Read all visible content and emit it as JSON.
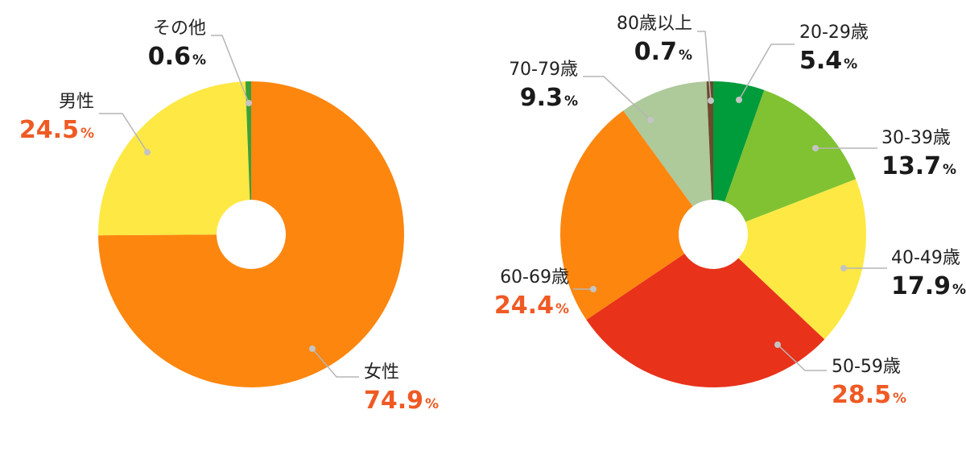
{
  "colors": {
    "accent_value": "#ef5a24",
    "normal_value": "#1a1a1a"
  },
  "chart_data": [
    {
      "type": "pie",
      "donut": true,
      "slices": [
        {
          "label": "女性",
          "value": 74.9,
          "display": "74.9",
          "unit": "%",
          "color": "#fd860f",
          "highlight": true
        },
        {
          "label": "男性",
          "value": 24.5,
          "display": "24.5",
          "unit": "%",
          "color": "#fee844",
          "highlight": true
        },
        {
          "label": "その他",
          "value": 0.6,
          "display": "0.6",
          "unit": "%",
          "color": "#3aa037",
          "highlight": false
        }
      ]
    },
    {
      "type": "pie",
      "donut": true,
      "slices": [
        {
          "label": "20-29歳",
          "value": 5.4,
          "display": "5.4",
          "unit": "%",
          "color": "#009b3b",
          "highlight": false
        },
        {
          "label": "30-39歳",
          "value": 13.7,
          "display": "13.7",
          "unit": "%",
          "color": "#80c232",
          "highlight": false
        },
        {
          "label": "40-49歳",
          "value": 17.9,
          "display": "17.9",
          "unit": "%",
          "color": "#fee844",
          "highlight": false
        },
        {
          "label": "50-59歳",
          "value": 28.5,
          "display": "28.5",
          "unit": "%",
          "color": "#e8321a",
          "highlight": true
        },
        {
          "label": "60-69歳",
          "value": 24.4,
          "display": "24.4",
          "unit": "%",
          "color": "#fd860f",
          "highlight": true
        },
        {
          "label": "70-79歳",
          "value": 9.3,
          "display": "9.3",
          "unit": "%",
          "color": "#aec99a",
          "highlight": false
        },
        {
          "label": "80歳以上",
          "value": 0.7,
          "display": "0.7",
          "unit": "%",
          "color": "#6b4a2e",
          "highlight": false
        }
      ]
    }
  ]
}
